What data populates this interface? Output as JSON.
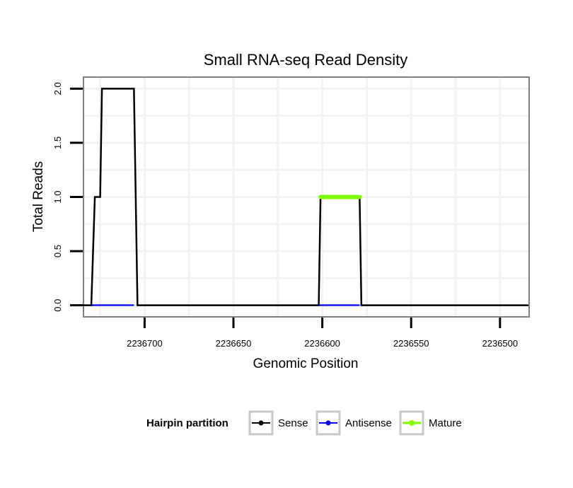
{
  "chart_data": {
    "type": "line",
    "title": "Small RNA-seq Read Density",
    "xlabel": "Genomic Position",
    "ylabel": "Total Reads",
    "x_reversed": true,
    "xlim": [
      2236734,
      2236484
    ],
    "ylim": [
      -0.1,
      2.1
    ],
    "x_ticks": [
      2236700,
      2236650,
      2236600,
      2236550,
      2236500
    ],
    "x_tick_labels": [
      "2236700",
      "2236650",
      "2236600",
      "2236550",
      "2236500"
    ],
    "y_ticks": [
      0.0,
      0.5,
      1.0,
      1.5,
      2.0
    ],
    "y_tick_labels": [
      "0.0",
      "0.5",
      "1.0",
      "1.5",
      "2.0"
    ],
    "grid": true,
    "series": [
      {
        "name": "Sense",
        "color": "#000000",
        "x": [
          2236735,
          2236730,
          2236728,
          2236725,
          2236724,
          2236706,
          2236704,
          2236602,
          2236601,
          2236579,
          2236578,
          2236484
        ],
        "y": [
          0,
          0,
          1,
          1,
          2,
          2,
          0,
          0,
          1,
          1,
          0,
          0
        ]
      },
      {
        "name": "Antisense",
        "color": "#0000ff",
        "x": [
          2236730,
          2236706,
          2236602,
          2236579
        ],
        "y": [
          0,
          0,
          0,
          0
        ],
        "segments": [
          [
            0,
            1
          ],
          [
            2,
            3
          ]
        ]
      },
      {
        "name": "Mature",
        "color": "#7fff00",
        "x": [
          2236601,
          2236579
        ],
        "y": [
          1,
          1
        ]
      }
    ],
    "legend": {
      "title": "Hairpin partition",
      "placement": "bottom",
      "entries": [
        "Sense",
        "Antisense",
        "Mature"
      ]
    }
  }
}
